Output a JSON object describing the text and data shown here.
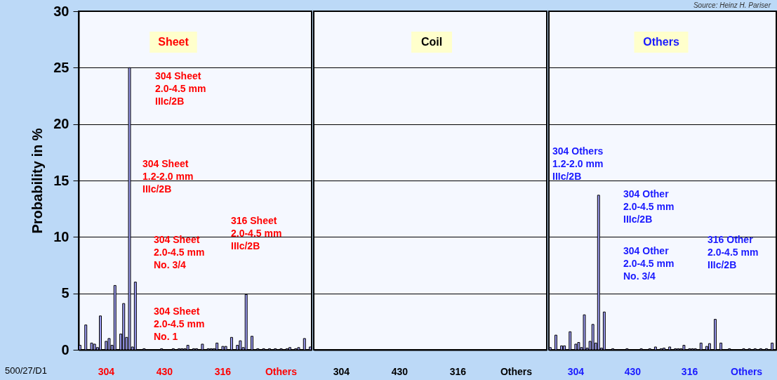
{
  "chart_data": [
    {
      "type": "bar",
      "ylabel": "Probability in %",
      "color": "#9c9cf2",
      "ylim": [
        0,
        30
      ],
      "yticks": [
        0,
        5,
        10,
        15,
        20,
        25,
        30
      ],
      "grid": "y",
      "categories": [
        null,
        null,
        null,
        null,
        null,
        null,
        null,
        null,
        null,
        "304",
        null,
        null,
        null,
        null,
        null,
        null,
        null,
        null,
        null,
        null,
        null,
        null,
        null,
        null,
        null,
        null,
        null,
        null,
        null,
        "430",
        null,
        null,
        null,
        null,
        null,
        null,
        null,
        null,
        null,
        null,
        null,
        null,
        null,
        null,
        null,
        null,
        null,
        null,
        null,
        "316",
        null,
        null,
        null,
        null,
        null,
        null,
        null,
        null,
        null,
        null,
        null,
        null,
        null,
        null,
        null,
        null,
        null,
        null,
        null,
        "Others",
        null,
        null,
        null,
        null,
        null,
        null,
        null,
        null,
        null,
        null
      ],
      "values": [
        0.4,
        null,
        2.2,
        null,
        0.6,
        0.5,
        0.2,
        3.0,
        null,
        0.75,
        1.0,
        0.4,
        5.7,
        null,
        1.4,
        4.1,
        1.1,
        25,
        0.25,
        6.0,
        null,
        null,
        0.1,
        null,
        null,
        null,
        null,
        null,
        0.1,
        null,
        null,
        null,
        0.1,
        null,
        0.1,
        0.1,
        0.1,
        0.4,
        null,
        0.1,
        0.1,
        null,
        0.5,
        null,
        0.1,
        0.1,
        0.1,
        0.6,
        null,
        0.3,
        0.3,
        null,
        1.1,
        null,
        0.4,
        0.8,
        0.2,
        4.9,
        null,
        1.2,
        null,
        0.1,
        null,
        0.1,
        null,
        0.1,
        null,
        0.1,
        null,
        0.1,
        null,
        0.1,
        0.2,
        null,
        0.1,
        0.2,
        null,
        1.0,
        null,
        0.25
      ],
      "annotations": [
        "Sheet",
        "304 Sheet\n2.0-4.5 mm\nIIIc/2B",
        "304 Sheet\n1.2-2.0 mm\nIIIc/2B",
        "316 Sheet\n2.0-4.5 mm\nIIIc/2B",
        "304 Sheet\n2.0-4.5 mm\nNo. 3/4",
        "304 Sheet\n2.0-4.5 mm\nNo. 1",
        "500/27/D1"
      ]
    },
    {
      "type": "bar",
      "color": "#9c9cf2",
      "ylim": [
        0,
        30
      ],
      "yticks": [
        0,
        5,
        10,
        15,
        20,
        25,
        30
      ],
      "grid": "y",
      "tick_labels": "x",
      "categories": [
        null,
        null,
        null,
        null,
        null,
        null,
        null,
        null,
        null,
        "304",
        null,
        null,
        null,
        null,
        null,
        null,
        null,
        null,
        null,
        null,
        null,
        null,
        null,
        null,
        null,
        null,
        null,
        null,
        null,
        "430",
        null,
        null,
        null,
        null,
        null,
        null,
        null,
        null,
        null,
        null,
        null,
        null,
        null,
        null,
        null,
        null,
        null,
        null,
        null,
        "316",
        null,
        null,
        null,
        null,
        null,
        null,
        null,
        null,
        null,
        null,
        null,
        null,
        null,
        null,
        null,
        null,
        null,
        null,
        null,
        "Others",
        null,
        null,
        null,
        null,
        null,
        null,
        null,
        null,
        null,
        null
      ],
      "values": [
        null,
        null,
        null,
        null,
        null,
        null,
        null,
        null,
        null,
        null,
        null,
        null,
        null,
        null,
        null,
        null,
        null,
        null,
        null,
        null,
        null,
        null,
        null,
        null,
        null,
        null,
        null,
        null,
        null,
        null,
        null,
        null,
        null,
        null,
        null,
        null,
        null,
        null,
        null,
        null,
        null,
        null,
        null,
        null,
        null,
        null,
        null,
        null,
        null,
        null,
        null,
        null,
        null,
        null,
        null,
        null,
        null,
        null,
        null,
        null,
        null,
        null,
        null,
        null,
        null,
        null,
        null,
        null,
        null,
        null,
        null,
        null,
        null,
        null,
        null,
        null,
        null,
        null,
        null,
        null
      ],
      "annotations": [
        "Coil"
      ]
    },
    {
      "type": "bar",
      "color": "#9c9cf2",
      "ylim": [
        0,
        30
      ],
      "yticks": [
        0,
        5,
        10,
        15,
        20,
        25,
        30
      ],
      "grid": "y",
      "tick_labels": "x",
      "categories": [
        null,
        null,
        null,
        null,
        null,
        null,
        null,
        null,
        null,
        "304",
        null,
        null,
        null,
        null,
        null,
        null,
        null,
        null,
        null,
        null,
        null,
        null,
        null,
        null,
        null,
        null,
        null,
        null,
        null,
        "430",
        null,
        null,
        null,
        null,
        null,
        null,
        null,
        null,
        null,
        null,
        null,
        null,
        null,
        null,
        null,
        null,
        null,
        null,
        null,
        "316",
        null,
        null,
        null,
        null,
        null,
        null,
        null,
        null,
        null,
        null,
        null,
        null,
        null,
        null,
        null,
        null,
        null,
        null,
        null,
        "Others",
        null,
        null,
        null,
        null,
        null,
        null,
        null,
        null,
        null,
        null
      ],
      "values": [
        0.2,
        null,
        1.3,
        null,
        0.35,
        0.35,
        null,
        1.6,
        null,
        0.5,
        0.65,
        0.2,
        3.1,
        0.15,
        0.75,
        2.25,
        0.6,
        13.7,
        0.15,
        3.35,
        null,
        null,
        0.1,
        null,
        null,
        null,
        null,
        0.1,
        null,
        null,
        null,
        null,
        0.1,
        null,
        null,
        0.1,
        null,
        0.25,
        null,
        0.1,
        0.15,
        null,
        0.25,
        null,
        0.1,
        0.1,
        0.1,
        0.4,
        null,
        0.1,
        0.1,
        0.1,
        null,
        0.6,
        null,
        0.3,
        0.55,
        null,
        2.7,
        null,
        0.6,
        null,
        null,
        0.1,
        null,
        null,
        null,
        null,
        0.1,
        null,
        0.1,
        null,
        0.1,
        null,
        0.1,
        null,
        0.1,
        null,
        0.6,
        null
      ],
      "annotations": [
        "Others",
        "304 Others\n1.2-2.0 mm\nIIIc/2B",
        "304 Other\n2.0-4.5 mm\nIIIc/2B",
        "304 Other\n2.0-4.5 mm\nNo. 3/4",
        "316 Other\n2.0-4.5 mm\nIIIc/2B",
        "Source: Heinz H. Pariser"
      ]
    }
  ]
}
